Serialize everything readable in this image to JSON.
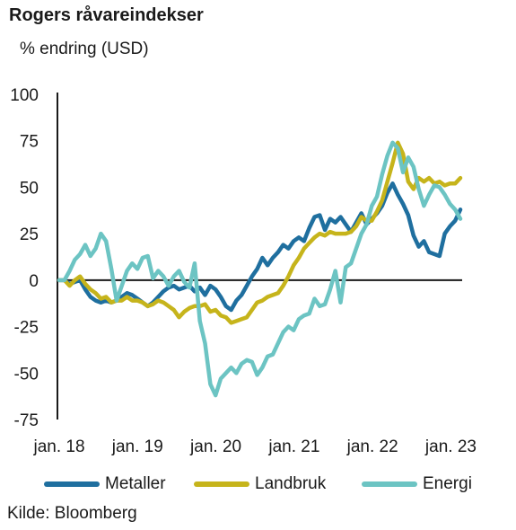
{
  "chart_data": {
    "type": "line",
    "title": "Rogers råvareindekser",
    "ylabel": "% endring (USD)",
    "xlabel": "",
    "ylim": [
      -75,
      100
    ],
    "yticks": [
      100,
      75,
      50,
      25,
      0,
      -25,
      -50,
      -75
    ],
    "xticks": [
      "jan. 18",
      "jan. 19",
      "jan. 20",
      "jan. 21",
      "jan. 22",
      "jan. 23"
    ],
    "x_start": "2018-01",
    "grid": false,
    "legend_position": "bottom",
    "source": "Kilde: Bloomberg",
    "series": [
      {
        "name": "Metaller",
        "color": "#1f6f9f",
        "values": [
          0,
          0,
          -2,
          -1,
          0,
          -5,
          -9,
          -11,
          -12,
          -11,
          -12,
          -11,
          -9,
          -7,
          -8,
          -10,
          -12,
          -14,
          -12,
          -9,
          -6,
          -4,
          -3,
          -5,
          -4,
          -3,
          -6,
          -4,
          -8,
          -3,
          -5,
          -9,
          -14,
          -16,
          -11,
          -8,
          -3,
          2,
          6,
          12,
          8,
          12,
          15,
          19,
          17,
          21,
          23,
          21,
          28,
          34,
          35,
          27,
          33,
          31,
          34,
          30,
          26,
          31,
          36,
          30,
          33,
          36,
          40,
          47,
          52,
          46,
          41,
          35,
          24,
          18,
          21,
          15,
          14,
          13,
          25,
          29,
          32,
          38
        ]
      },
      {
        "name": "Landbruk",
        "color": "#c6b41b",
        "values": [
          0,
          0,
          -3,
          0,
          2,
          -2,
          -5,
          -7,
          -10,
          -9,
          -12,
          -11,
          -11,
          -9,
          -11,
          -11,
          -12,
          -14,
          -13,
          -11,
          -12,
          -14,
          -16,
          -20,
          -17,
          -15,
          -14,
          -14,
          -13,
          -17,
          -16,
          -19,
          -20,
          -23,
          -22,
          -21,
          -20,
          -16,
          -12,
          -11,
          -9,
          -8,
          -7,
          -3,
          2,
          8,
          12,
          17,
          20,
          23,
          25,
          24,
          26,
          25,
          25,
          25,
          26,
          29,
          34,
          32,
          32,
          37,
          43,
          53,
          63,
          74,
          68,
          53,
          49,
          55,
          53,
          55,
          52,
          53,
          51,
          52,
          52,
          55
        ]
      },
      {
        "name": "Energi",
        "color": "#6cc4c3",
        "values": [
          0,
          0,
          5,
          11,
          14,
          19,
          13,
          17,
          25,
          21,
          6,
          -11,
          -3,
          5,
          9,
          6,
          12,
          13,
          1,
          5,
          2,
          -3,
          2,
          5,
          -1,
          -4,
          9,
          -22,
          -34,
          -56,
          -62,
          -53,
          -50,
          -47,
          -50,
          -45,
          -43,
          -44,
          -51,
          -47,
          -41,
          -40,
          -34,
          -28,
          -25,
          -27,
          -21,
          -19,
          -18,
          -10,
          -14,
          -13,
          -5,
          5,
          -12,
          7,
          9,
          17,
          25,
          30,
          40,
          45,
          57,
          67,
          74,
          71,
          58,
          66,
          61,
          49,
          40,
          46,
          51,
          50,
          46,
          41,
          38,
          33
        ]
      }
    ]
  }
}
